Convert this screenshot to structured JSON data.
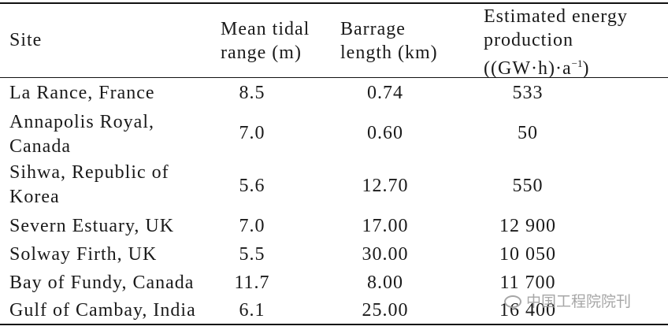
{
  "table": {
    "headers": {
      "site": "Site",
      "tidal": "Mean tidal\nrange (m)",
      "barrage": "Barrage\nlength (km)",
      "energy": "Estimated energy\nproduction\n((GW·h)·a",
      "energy_sup": "−1",
      "energy_close": ")"
    },
    "rows": [
      {
        "site": "La Rance, France",
        "tidal": "8.5",
        "barrage": "0.74",
        "energy": "533"
      },
      {
        "site": "Annapolis Royal,\nCanada",
        "tidal": "7.0",
        "barrage": "0.60",
        "energy": "50"
      },
      {
        "site": "Sihwa, Republic of\nKorea",
        "tidal": "5.6",
        "barrage": "12.70",
        "energy": "550"
      },
      {
        "site": "Severn Estuary, UK",
        "tidal": "7.0",
        "barrage": "17.00",
        "energy": "12 900"
      },
      {
        "site": "Solway Firth, UK",
        "tidal": "5.5",
        "barrage": "30.00",
        "energy": "10 050"
      },
      {
        "site": "Bay of Fundy, Canada",
        "tidal": "11.7",
        "barrage": "8.00",
        "energy": "11 700"
      },
      {
        "site": "Gulf of Cambay, India",
        "tidal": "6.1",
        "barrage": "25.00",
        "energy": "16 400"
      }
    ]
  },
  "watermark": {
    "text": "中国工程院院刊",
    "icon": "wechat-icon"
  }
}
